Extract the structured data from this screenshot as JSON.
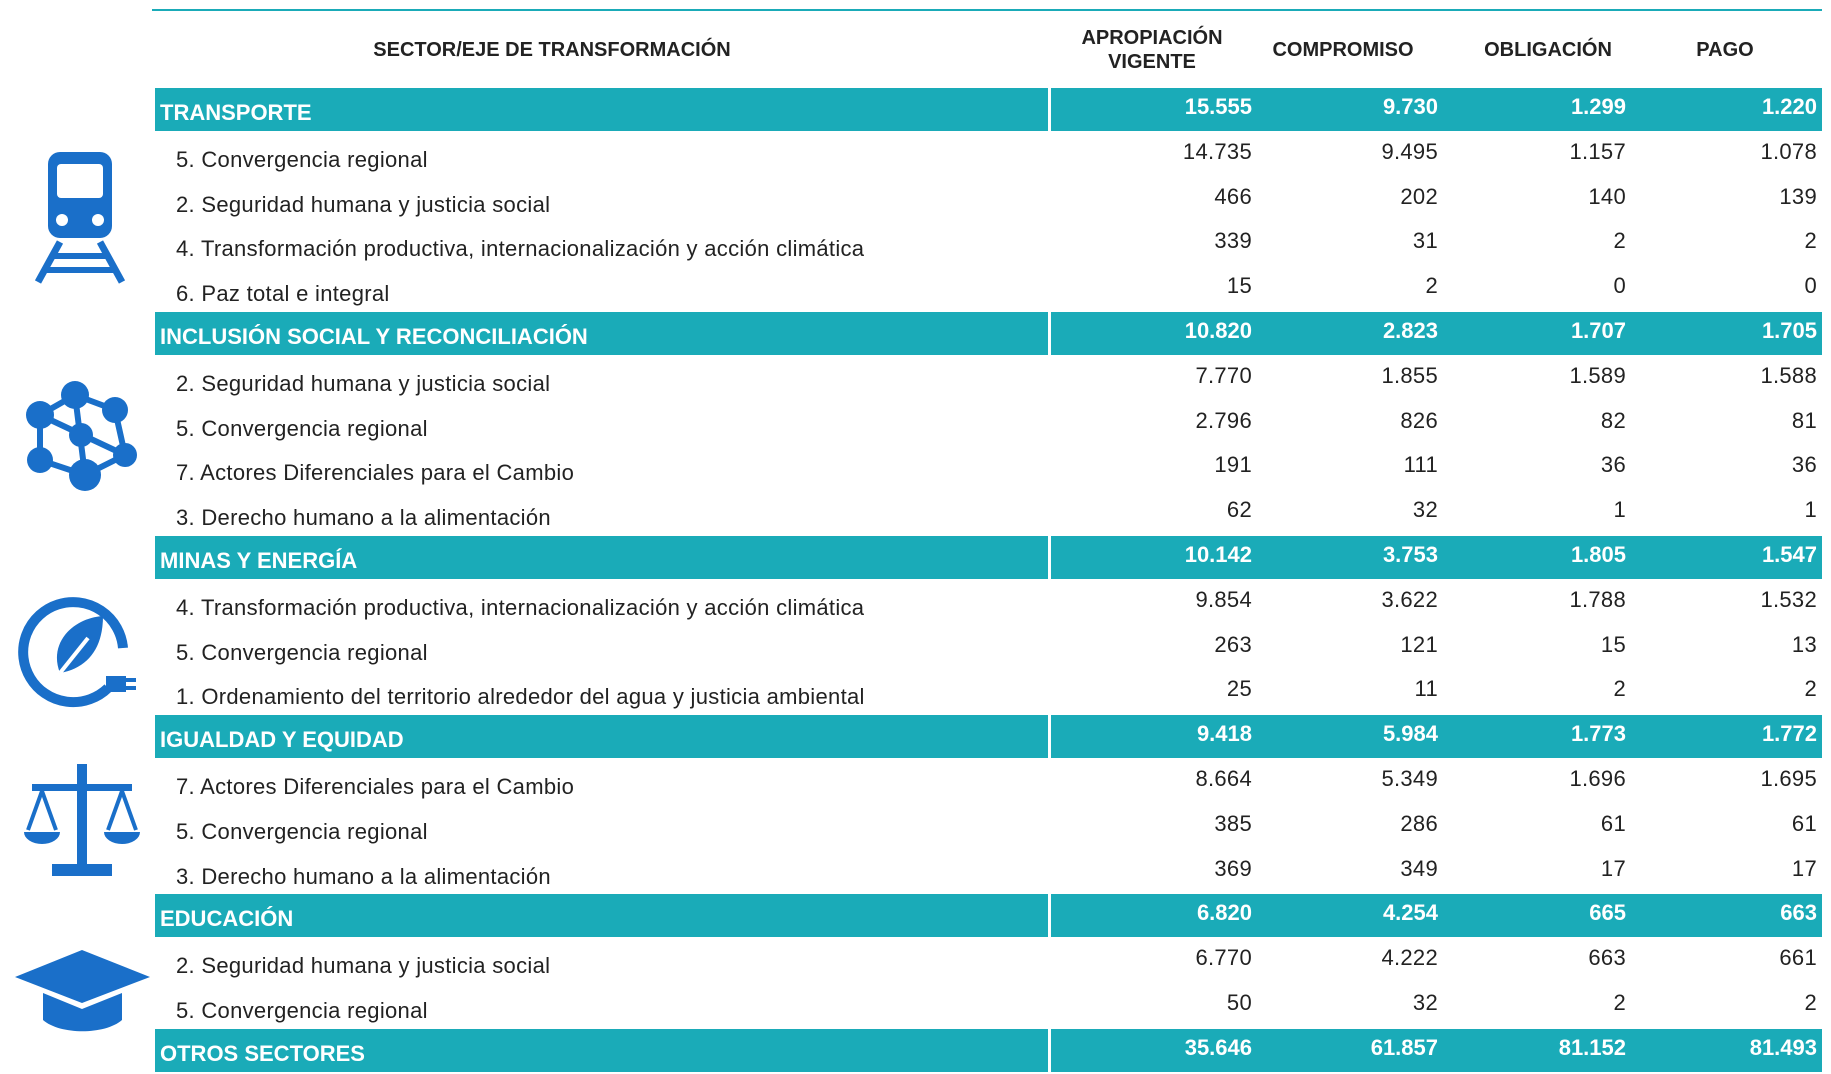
{
  "table": {
    "columns": [
      "SECTOR/EJE DE TRANSFORMACIÓN",
      "APROPIACIÓN VIGENTE",
      "COMPROMISO",
      "OBLIGACIÓN",
      "PAGO"
    ],
    "sections": [
      {
        "name": "TRANSPORTE",
        "values": [
          "15.555",
          "9.730",
          "1.299",
          "1.220"
        ],
        "rows": [
          {
            "label": "5. Convergencia regional",
            "values": [
              "14.735",
              "9.495",
              "1.157",
              "1.078"
            ]
          },
          {
            "label": "2. Seguridad humana y justicia social",
            "values": [
              "466",
              "202",
              "140",
              "139"
            ]
          },
          {
            "label": "4. Transformación productiva, internacionalización y acción climática",
            "values": [
              "339",
              "31",
              "2",
              "2"
            ]
          },
          {
            "label": "6. Paz total e integral",
            "values": [
              "15",
              "2",
              "0",
              "0"
            ]
          }
        ]
      },
      {
        "name": "INCLUSIÓN SOCIAL Y RECONCILIACIÓN",
        "values": [
          "10.820",
          "2.823",
          "1.707",
          "1.705"
        ],
        "rows": [
          {
            "label": "2. Seguridad humana y justicia social",
            "values": [
              "7.770",
              "1.855",
              "1.589",
              "1.588"
            ]
          },
          {
            "label": "5. Convergencia regional",
            "values": [
              "2.796",
              "826",
              "82",
              "81"
            ]
          },
          {
            "label": "7. Actores Diferenciales para el Cambio",
            "values": [
              "191",
              "111",
              "36",
              "36"
            ]
          },
          {
            "label": "3. Derecho humano a la alimentación",
            "values": [
              "62",
              "32",
              "1",
              "1"
            ]
          }
        ]
      },
      {
        "name": "MINAS Y ENERGÍA",
        "values": [
          "10.142",
          "3.753",
          "1.805",
          "1.547"
        ],
        "rows": [
          {
            "label": "4. Transformación productiva, internacionalización y acción climática",
            "values": [
              "9.854",
              "3.622",
              "1.788",
              "1.532"
            ]
          },
          {
            "label": "5. Convergencia regional",
            "values": [
              "263",
              "121",
              "15",
              "13"
            ]
          },
          {
            "label": "1. Ordenamiento del territorio alrededor del agua y justicia ambiental",
            "values": [
              "25",
              "11",
              "2",
              "2"
            ]
          }
        ]
      },
      {
        "name": "IGUALDAD Y EQUIDAD",
        "values": [
          "9.418",
          "5.984",
          "1.773",
          "1.772"
        ],
        "rows": [
          {
            "label": "7. Actores Diferenciales para el Cambio",
            "values": [
              "8.664",
              "5.349",
              "1.696",
              "1.695"
            ]
          },
          {
            "label": "5. Convergencia regional",
            "values": [
              "385",
              "286",
              "61",
              "61"
            ]
          },
          {
            "label": "3. Derecho humano a la alimentación",
            "values": [
              "369",
              "349",
              "17",
              "17"
            ]
          }
        ]
      },
      {
        "name": "EDUCACIÓN",
        "values": [
          "6.820",
          "4.254",
          "665",
          "663"
        ],
        "rows": [
          {
            "label": "2. Seguridad humana y justicia social",
            "values": [
              "6.770",
              "4.222",
              "663",
              "661"
            ]
          },
          {
            "label": "5. Convergencia regional",
            "values": [
              "50",
              "32",
              "2",
              "2"
            ]
          }
        ]
      },
      {
        "name": "OTROS SECTORES",
        "values": [
          "35.646",
          "61.857",
          "81.152",
          "81.493"
        ],
        "rows": []
      }
    ]
  }
}
